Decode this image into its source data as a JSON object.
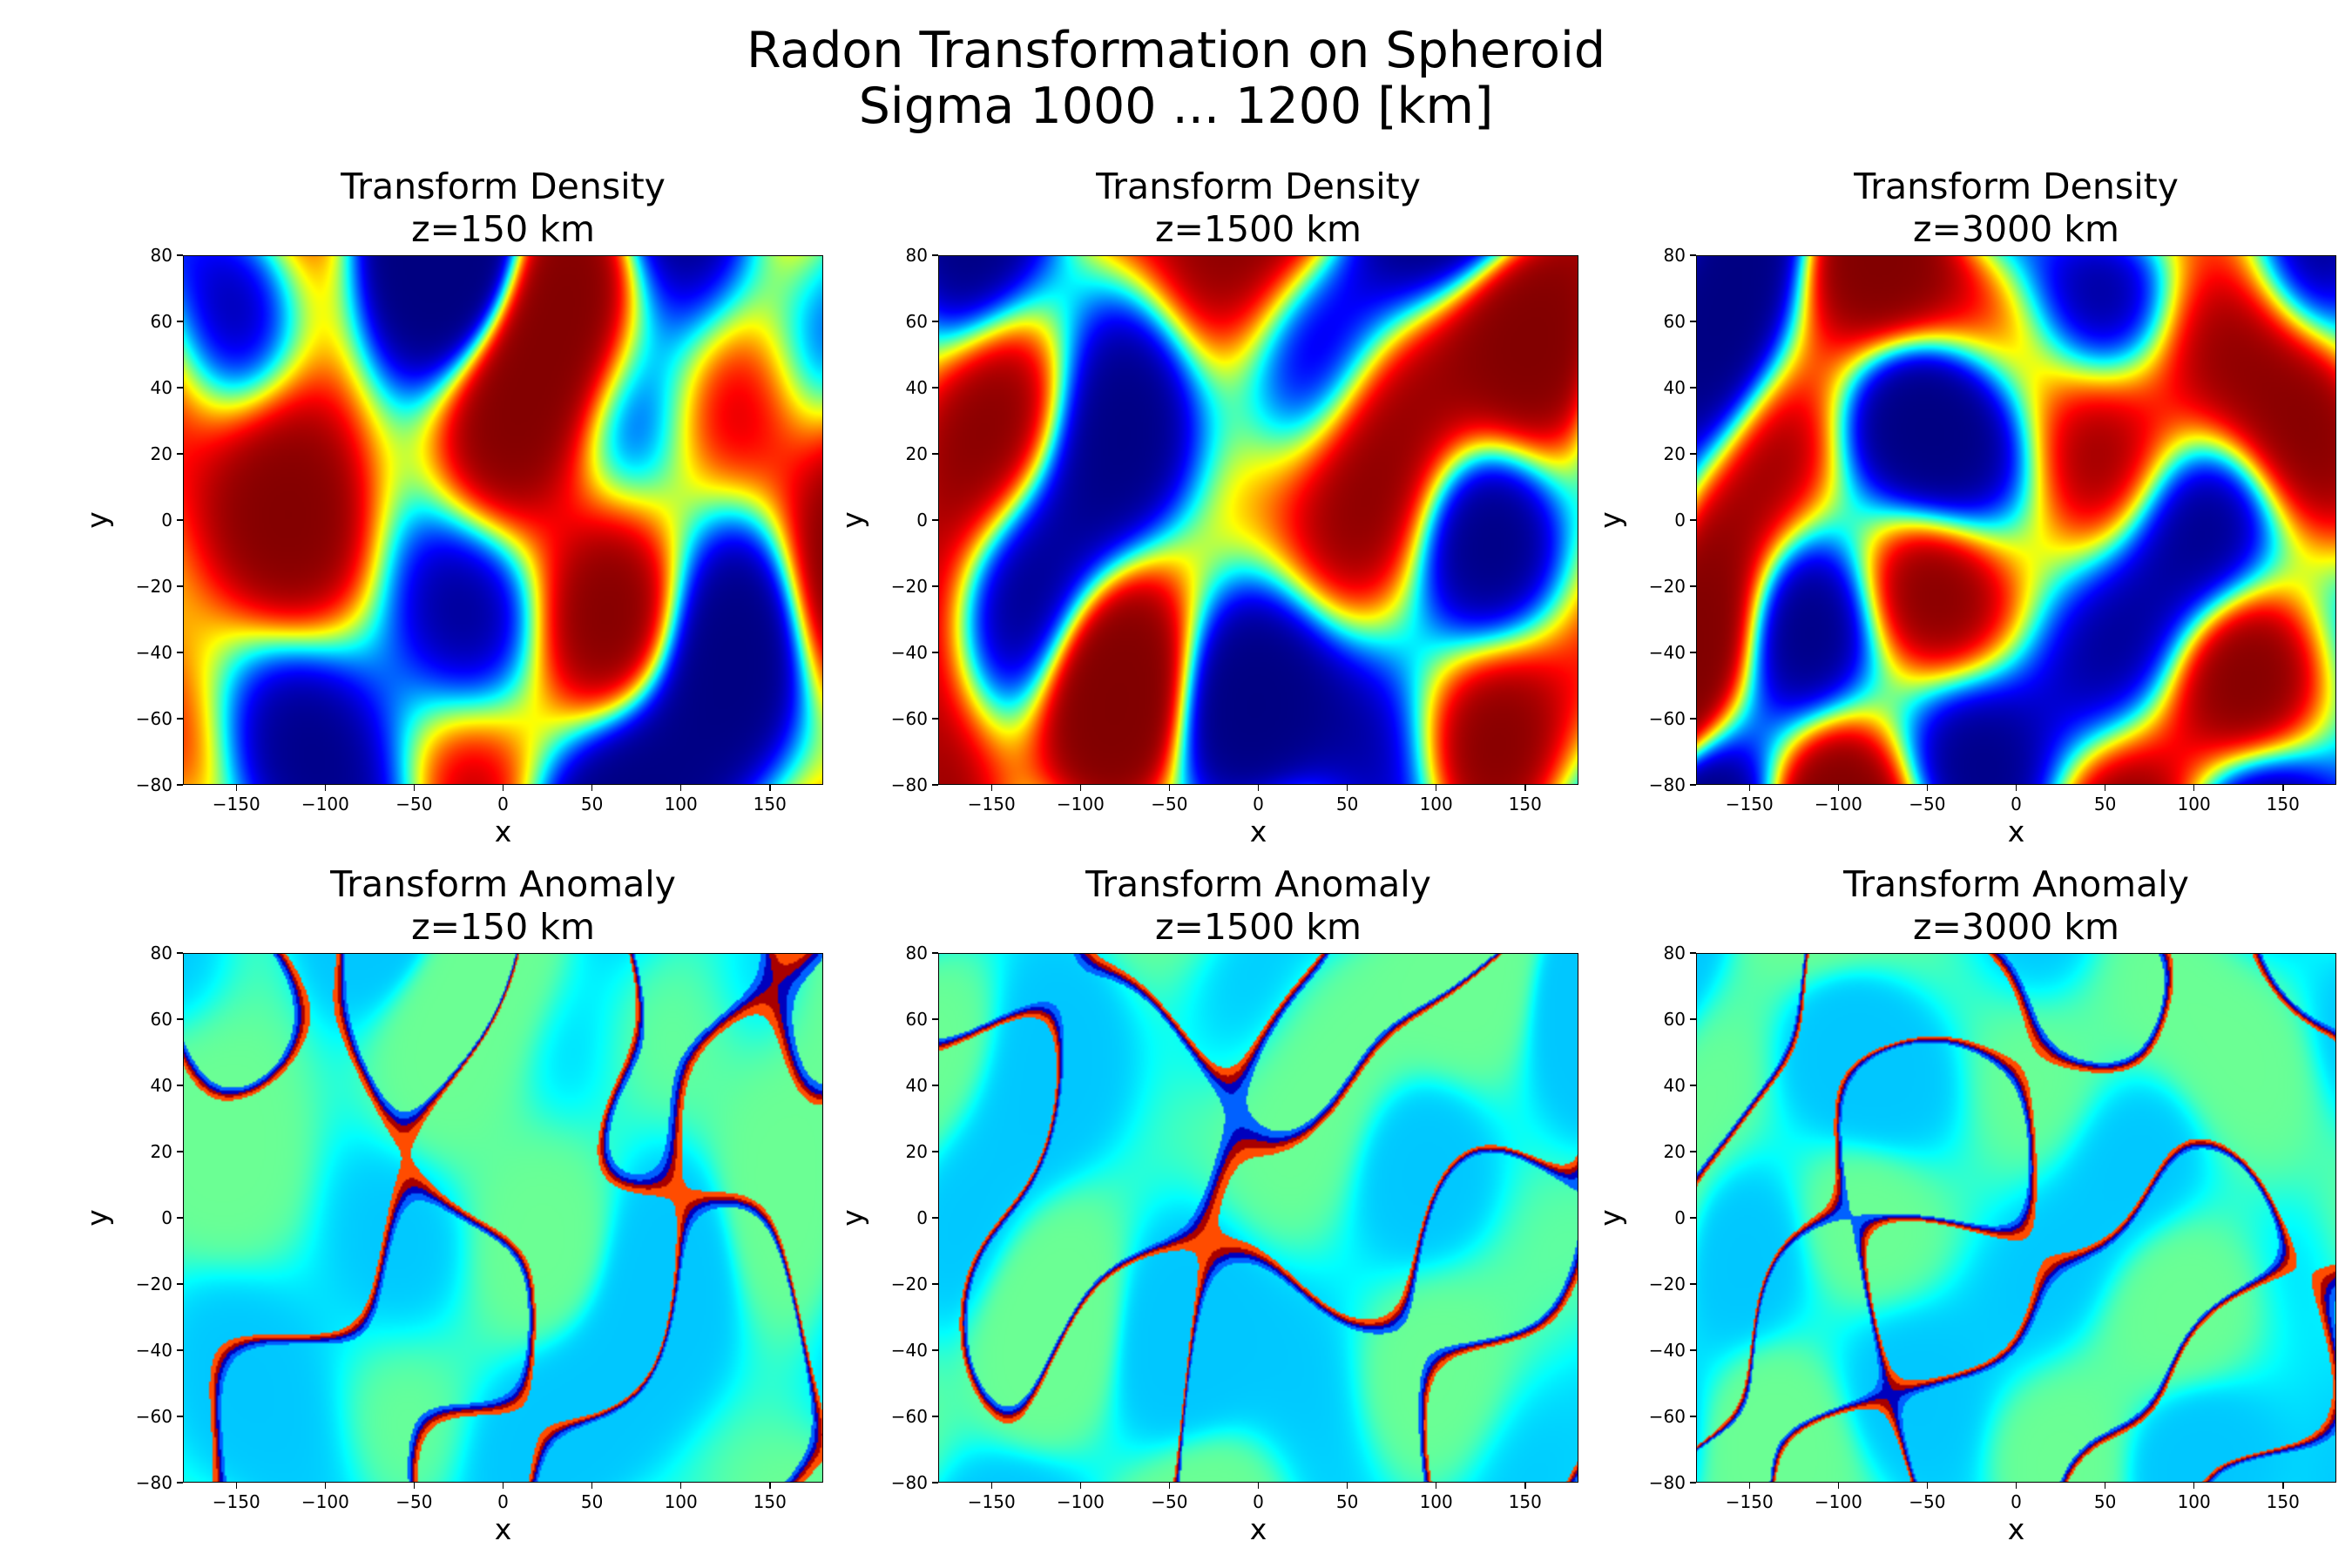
{
  "figure": {
    "suptitle_line1": "Radon Transformation on Spheroid",
    "suptitle_line2": "Sigma 1000 ... 1200 [km]",
    "colormap": "jet"
  },
  "chart_data": [
    {
      "type": "heatmap",
      "title_line1": "Transform Density",
      "title_line2": "z=150 km",
      "xlabel": "x",
      "ylabel": "y",
      "xlim": [
        -180,
        180
      ],
      "ylim": [
        -80,
        80
      ],
      "xticks": [
        "−150",
        "−100",
        "−50",
        "0",
        "50",
        "100",
        "150"
      ],
      "yticks": [
        "−80",
        "−60",
        "−40",
        "−20",
        "0",
        "20",
        "40",
        "60",
        "80"
      ],
      "field": "density",
      "seed": 11
    },
    {
      "type": "heatmap",
      "title_line1": "Transform Density",
      "title_line2": "z=1500 km",
      "xlabel": "x",
      "ylabel": "y",
      "xlim": [
        -180,
        180
      ],
      "ylim": [
        -80,
        80
      ],
      "xticks": [
        "−150",
        "−100",
        "−50",
        "0",
        "50",
        "100",
        "150"
      ],
      "yticks": [
        "−80",
        "−60",
        "−40",
        "−20",
        "0",
        "20",
        "40",
        "60",
        "80"
      ],
      "field": "density",
      "seed": 23
    },
    {
      "type": "heatmap",
      "title_line1": "Transform Density",
      "title_line2": "z=3000 km",
      "xlabel": "x",
      "ylabel": "y",
      "xlim": [
        -180,
        180
      ],
      "ylim": [
        -80,
        80
      ],
      "xticks": [
        "−150",
        "−100",
        "−50",
        "0",
        "50",
        "100",
        "150"
      ],
      "yticks": [
        "−80",
        "−60",
        "−40",
        "−20",
        "0",
        "20",
        "40",
        "60",
        "80"
      ],
      "field": "density",
      "seed": 37
    },
    {
      "type": "heatmap",
      "title_line1": "Transform Anomaly",
      "title_line2": "z=150 km",
      "xlabel": "x",
      "ylabel": "y",
      "xlim": [
        -180,
        180
      ],
      "ylim": [
        -80,
        80
      ],
      "xticks": [
        "−150",
        "−100",
        "−50",
        "0",
        "50",
        "100",
        "150"
      ],
      "yticks": [
        "−80",
        "−60",
        "−40",
        "−20",
        "0",
        "20",
        "40",
        "60",
        "80"
      ],
      "field": "anomaly",
      "seed": 11
    },
    {
      "type": "heatmap",
      "title_line1": "Transform Anomaly",
      "title_line2": "z=1500 km",
      "xlabel": "x",
      "ylabel": "y",
      "xlim": [
        -180,
        180
      ],
      "ylim": [
        -80,
        80
      ],
      "xticks": [
        "−150",
        "−100",
        "−50",
        "0",
        "50",
        "100",
        "150"
      ],
      "yticks": [
        "−80",
        "−60",
        "−40",
        "−20",
        "0",
        "20",
        "40",
        "60",
        "80"
      ],
      "field": "anomaly",
      "seed": 23
    },
    {
      "type": "heatmap",
      "title_line1": "Transform Anomaly",
      "title_line2": "z=3000 km",
      "xlabel": "x",
      "ylabel": "y",
      "xlim": [
        -180,
        180
      ],
      "ylim": [
        -80,
        80
      ],
      "xticks": [
        "−150",
        "−100",
        "−50",
        "0",
        "50",
        "100",
        "150"
      ],
      "yticks": [
        "−80",
        "−60",
        "−40",
        "−20",
        "0",
        "20",
        "40",
        "60",
        "80"
      ],
      "field": "anomaly",
      "seed": 37
    }
  ]
}
